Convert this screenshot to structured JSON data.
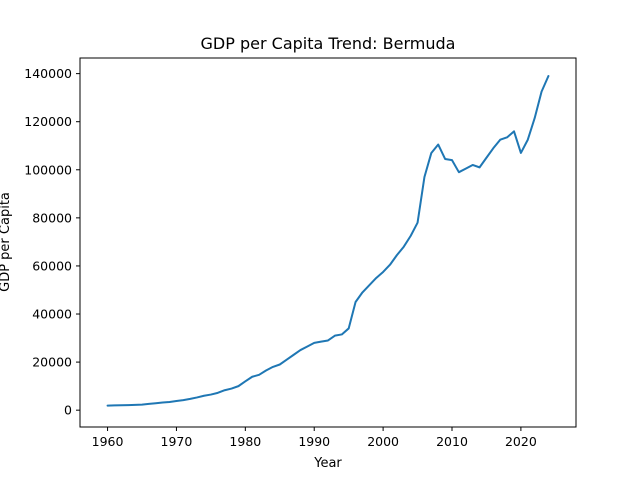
{
  "chart_data": {
    "type": "line",
    "title": "GDP per Capita Trend: Bermuda",
    "xlabel": "Year",
    "ylabel": "GDP per Capita",
    "xlim": [
      1956,
      2028
    ],
    "ylim": [
      -7000,
      146500
    ],
    "xticks": [
      1960,
      1970,
      1980,
      1990,
      2000,
      2010,
      2020
    ],
    "yticks": [
      0,
      20000,
      40000,
      60000,
      80000,
      100000,
      120000,
      140000
    ],
    "grid": false,
    "legend": "none",
    "colors": {
      "series": "#1f77b4"
    },
    "series": [
      {
        "x": [
          1960,
          1961,
          1962,
          1963,
          1964,
          1965,
          1966,
          1967,
          1968,
          1969,
          1970,
          1971,
          1972,
          1973,
          1974,
          1975,
          1976,
          1977,
          1978,
          1979,
          1980,
          1981,
          1982,
          1983,
          1984,
          1985,
          1986,
          1987,
          1988,
          1989,
          1990,
          1991,
          1992,
          1993,
          1994,
          1995,
          1996,
          1997,
          1998,
          1999,
          2000,
          2001,
          2002,
          2003,
          2004,
          2005,
          2006,
          2007,
          2008,
          2009,
          2010,
          2011,
          2012,
          2013,
          2014,
          2015,
          2016,
          2017,
          2018,
          2019,
          2020,
          2021,
          2022,
          2023,
          2024
        ],
        "values": [
          1900,
          2000,
          2050,
          2100,
          2200,
          2300,
          2600,
          2900,
          3200,
          3400,
          3800,
          4200,
          4700,
          5300,
          6000,
          6500,
          7200,
          8300,
          9000,
          10000,
          12000,
          13900,
          14700,
          16500,
          18000,
          19000,
          21000,
          23000,
          25000,
          26500,
          28000,
          28500,
          29000,
          31000,
          31500,
          34000,
          45000,
          49000,
          52000,
          55000,
          57500,
          60500,
          64500,
          68000,
          72500,
          78000,
          97000,
          107000,
          110500,
          104500,
          104000,
          99000,
          100500,
          102000,
          101000,
          105000,
          109000,
          112500,
          113500,
          116000,
          107000,
          112500,
          121500,
          132500,
          139000
        ]
      }
    ]
  }
}
